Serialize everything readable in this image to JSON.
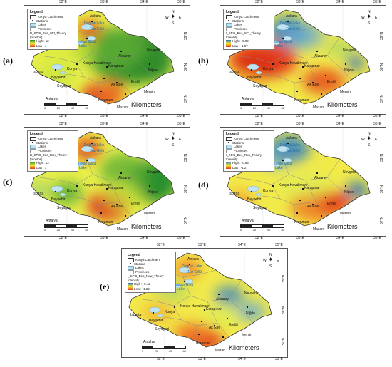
{
  "panels": [
    {
      "id": "a",
      "label": "(a)",
      "lat_ticks": [
        "39°N",
        "38°N",
        "37°N"
      ],
      "lon_ticks": [
        "32°E",
        "33°E",
        "34°E",
        "35°E"
      ],
      "legend_lines": [
        "Legend",
        "Konya Catchment",
        "Stations",
        "Lakes",
        "Provinces",
        "D_SPI6_Dec_SPI_Theory",
        "(months)",
        "High : 13",
        "Low : 4"
      ],
      "scheme": "green",
      "kilometers": "Kilometers",
      "scale": [
        "0",
        "20",
        "40",
        "80"
      ]
    },
    {
      "id": "b",
      "label": "(b)",
      "lat_ticks": [
        "39°N",
        "38°N",
        "37°N"
      ],
      "lon_ticks": [
        "32°E",
        "33°E",
        "34°E",
        "35°E"
      ],
      "legend_lines": [
        "Legend",
        "Konya Catchment",
        "Stations",
        "Lakes",
        "Provinces",
        "I_SPI6_Dec_SPI_Theory",
        "Intensity",
        "High : -0.99",
        "Low : -1.57"
      ],
      "scheme": "red",
      "kilometers": "Kilometers",
      "scale": [
        "0",
        "20",
        "40",
        "80"
      ]
    },
    {
      "id": "c",
      "label": "(c)",
      "lat_ticks": [
        "39°N",
        "38°N",
        "37°N"
      ],
      "lon_ticks": [
        "32°E",
        "33°E",
        "34°E",
        "35°E"
      ],
      "legend_lines": [
        "Legend",
        "Konya Catchment",
        "Stations",
        "Lakes",
        "Provinces",
        "D_SPI6_Dec_Run_Theory",
        "(months)",
        "High : 13",
        "Low : 7"
      ],
      "scheme": "green",
      "kilometers": "Kilometers",
      "scale": [
        "0",
        "20",
        "40",
        "80"
      ]
    },
    {
      "id": "d",
      "label": "(d)",
      "lat_ticks": [
        "39°N",
        "38°N",
        "37°N"
      ],
      "lon_ticks": [
        "32°E",
        "33°E",
        "34°E",
        "35°E"
      ],
      "legend_lines": [
        "Legend",
        "Konya Catchment",
        "Stations",
        "Lakes",
        "Provinces",
        "I_SPI6_Dec_Run_Theory",
        "Intensity",
        "High : -0.93",
        "Low : -1.27"
      ],
      "scheme": "red",
      "kilometers": "Kilometers",
      "scale": [
        "0",
        "20",
        "40",
        "80"
      ]
    },
    {
      "id": "e",
      "label": "(e)",
      "lat_ticks": [
        "39°N",
        "38°N",
        "37°N"
      ],
      "lon_ticks": [
        "32°E",
        "33°E",
        "34°E",
        "35°E"
      ],
      "legend_lines": [
        "Legend",
        "Konya Catchment",
        "Stations",
        "Lakes",
        "Provinces",
        "I_SPI6_Dec_New_Theory",
        "Intensity",
        "High : -0.42",
        "Low : -1.22"
      ],
      "scheme": "red",
      "kilometers": "Kilometers",
      "scale": [
        "0",
        "20",
        "40",
        "80"
      ]
    }
  ],
  "places": [
    "Ankara",
    "Doğruk Lake",
    "Tuz Gölü",
    "Tersakan Gölü",
    "Bolluk Lake",
    "Aksaray",
    "Nevşehir",
    "Konya",
    "Konya Havalimanı",
    "Karapınar",
    "Niğde",
    "Isparta",
    "Beyşehir",
    "Seyitgazi",
    "Ereğli",
    "Ak Ebe",
    "Antalya",
    "Karaman",
    "Mersin",
    "Mazan"
  ],
  "compass": [
    "N",
    "S",
    "E",
    "W"
  ]
}
